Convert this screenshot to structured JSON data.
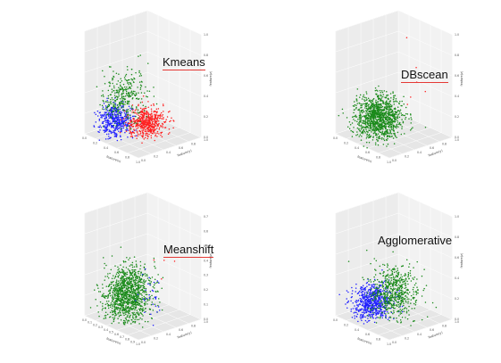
{
  "chart_data": [
    {
      "type": "scatter",
      "title": "Kmeans",
      "xlabel": "feature(x)",
      "ylabel": "feature(y)",
      "zlabel": "feature(z)",
      "xticks": [
        "0.0",
        "0.2",
        "0.4",
        "0.6",
        "0.8",
        "1.0"
      ],
      "yticks": [
        "0.0",
        "0.2",
        "0.4",
        "0.6",
        "0.8",
        "1.0"
      ],
      "zticks": [
        "0.0",
        "0.2",
        "0.4",
        "0.6",
        "0.8",
        "1.0"
      ],
      "xlim": [
        0,
        1
      ],
      "ylim": [
        0,
        1
      ],
      "zlim": [
        0,
        1
      ],
      "series": [
        {
          "color": "#1f1fff",
          "count": 450,
          "cx": 0.28,
          "cy": 0.25,
          "cz": 0.15,
          "sx": 0.09,
          "sy": 0.1,
          "sz": 0.08
        },
        {
          "color": "#ff1f1f",
          "count": 520,
          "cx": 0.52,
          "cy": 0.55,
          "cz": 0.12,
          "sx": 0.1,
          "sy": 0.12,
          "sz": 0.07
        },
        {
          "color": "#1a8a1a",
          "count": 330,
          "cx": 0.35,
          "cy": 0.3,
          "cz": 0.38,
          "sx": 0.14,
          "sy": 0.14,
          "sz": 0.12
        }
      ]
    },
    {
      "type": "scatter",
      "title": "DBscean",
      "xlabel": "feature(x)",
      "ylabel": "feature(y)",
      "zlabel": "feature(z)",
      "xticks": [
        "0.0",
        "0.2",
        "0.4",
        "0.6",
        "0.8",
        "1.0"
      ],
      "yticks": [
        "0.0",
        "0.2",
        "0.4",
        "0.6",
        "0.8",
        "1.0"
      ],
      "zticks": [
        "0.0",
        "0.2",
        "0.4",
        "0.6",
        "0.8",
        "1.0"
      ],
      "xlim": [
        0,
        1
      ],
      "ylim": [
        0,
        1
      ],
      "zlim": [
        0,
        1
      ],
      "series": [
        {
          "color": "#1a8a1a",
          "count": 1200,
          "cx": 0.38,
          "cy": 0.35,
          "cz": 0.18,
          "sx": 0.14,
          "sy": 0.15,
          "sz": 0.1
        },
        {
          "color": "#ff1f1f",
          "count": 6,
          "cx": 0.75,
          "cy": 0.6,
          "cz": 0.55,
          "sx": 0.1,
          "sy": 0.1,
          "sz": 0.15
        }
      ]
    },
    {
      "type": "scatter",
      "title": "Meanshift",
      "xlabel": "feature(x)",
      "ylabel": "feature(y)",
      "zlabel": "feature(z)",
      "xticks": [
        "0.0",
        "0.1",
        "0.2",
        "0.3",
        "0.4",
        "0.5",
        "0.6",
        "0.7",
        "0.8",
        "0.9",
        "1.0"
      ],
      "yticks": [
        "0.0",
        "0.2",
        "0.4",
        "0.6",
        "0.8",
        "1.0"
      ],
      "zticks": [
        "0.0",
        "0.1",
        "0.2",
        "0.3",
        "0.4",
        "0.5",
        "0.6",
        "0.7"
      ],
      "xlim": [
        0,
        1
      ],
      "ylim": [
        0,
        1
      ],
      "zlim": [
        0,
        0.7
      ],
      "series": [
        {
          "color": "#1a8a1a",
          "count": 1150,
          "cx": 0.4,
          "cy": 0.35,
          "cz": 0.16,
          "sx": 0.14,
          "sy": 0.15,
          "sz": 0.09
        },
        {
          "color": "#1f1fff",
          "count": 30,
          "cx": 0.7,
          "cy": 0.45,
          "cz": 0.18,
          "sx": 0.1,
          "sy": 0.1,
          "sz": 0.08
        },
        {
          "color": "#ff1f1f",
          "count": 5,
          "cx": 0.8,
          "cy": 0.6,
          "cz": 0.45,
          "sx": 0.08,
          "sy": 0.08,
          "sz": 0.1
        }
      ]
    },
    {
      "type": "scatter",
      "title": "Agglomerative",
      "xlabel": "feature(x)",
      "ylabel": "feature(y)",
      "zlabel": "feature(z)",
      "xticks": [
        "0.0",
        "0.2",
        "0.4",
        "0.6",
        "0.8",
        "1.0"
      ],
      "yticks": [
        "0.0",
        "0.2",
        "0.4",
        "0.6",
        "0.8",
        "1.0"
      ],
      "zticks": [
        "0.0",
        "0.2",
        "0.4",
        "0.6",
        "0.8",
        "1.0"
      ],
      "xlim": [
        0,
        1
      ],
      "ylim": [
        0,
        1
      ],
      "zlim": [
        0,
        1
      ],
      "series": [
        {
          "color": "#1f1fff",
          "count": 650,
          "cx": 0.33,
          "cy": 0.3,
          "cz": 0.15,
          "sx": 0.11,
          "sy": 0.12,
          "sz": 0.08
        },
        {
          "color": "#1a8a1a",
          "count": 600,
          "cx": 0.5,
          "cy": 0.5,
          "cz": 0.25,
          "sx": 0.14,
          "sy": 0.14,
          "sz": 0.12
        }
      ]
    }
  ]
}
